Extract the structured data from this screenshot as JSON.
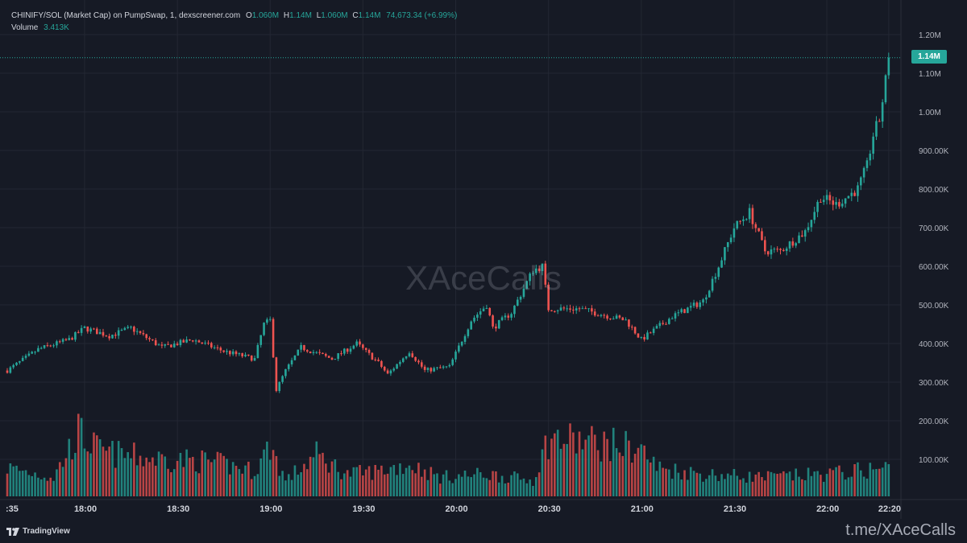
{
  "legend": {
    "symbol": "CHINIFY/SOL (Market Cap) on PumpSwap, 1, dexscreener.com",
    "o_label": "O",
    "o_value": "1.060M",
    "h_label": "H",
    "h_value": "1.14M",
    "l_label": "L",
    "l_value": "1.060M",
    "c_label": "C",
    "c_value": "1.14M",
    "change": "74,673.34 (+6.99%)",
    "volume_label": "Volume",
    "volume_value": "3.413K"
  },
  "price_badge": "1.14M",
  "watermark": "XAceCalls",
  "branding": {
    "tv_label": "TradingView",
    "link": "t.me/XAceCalls"
  },
  "colors": {
    "background": "#161a25",
    "up": "#26a69a",
    "down": "#ef5350",
    "grid": "#232733",
    "text": "#b2b5be"
  },
  "chart_data": {
    "type": "candlestick",
    "y_axis_ticks": [
      {
        "value": 1200000,
        "label": "1.20M"
      },
      {
        "value": 1100000,
        "label": "1.10M"
      },
      {
        "value": 1000000,
        "label": "1.00M"
      },
      {
        "value": 900000,
        "label": "900.00K"
      },
      {
        "value": 800000,
        "label": "800.00K"
      },
      {
        "value": 700000,
        "label": "700.00K"
      },
      {
        "value": 600000,
        "label": "600.00K"
      },
      {
        "value": 500000,
        "label": "500.00K"
      },
      {
        "value": 400000,
        "label": "400.00K"
      },
      {
        "value": 300000,
        "label": "300.00K"
      },
      {
        "value": 200000,
        "label": "200.00K"
      },
      {
        "value": 100000,
        "label": "100.00K"
      }
    ],
    "x_axis_ticks": [
      {
        "time": "17:35",
        "label": ":35"
      },
      {
        "time": "18:00",
        "label": "18:00"
      },
      {
        "time": "18:30",
        "label": "18:30"
      },
      {
        "time": "19:00",
        "label": "19:00"
      },
      {
        "time": "19:30",
        "label": "19:30"
      },
      {
        "time": "20:00",
        "label": "20:00"
      },
      {
        "time": "20:30",
        "label": "20:30"
      },
      {
        "time": "21:00",
        "label": "21:00"
      },
      {
        "time": "21:30",
        "label": "21:30"
      },
      {
        "time": "22:00",
        "label": "22:00"
      },
      {
        "time": "22:20",
        "label": "22:20"
      }
    ],
    "last_price": 1140000,
    "close_path": [
      [
        "17:35",
        330000
      ],
      [
        "17:45",
        385000
      ],
      [
        "17:55",
        410000
      ],
      [
        "18:00",
        440000
      ],
      [
        "18:08",
        420000
      ],
      [
        "18:15",
        440000
      ],
      [
        "18:25",
        390000
      ],
      [
        "18:35",
        410000
      ],
      [
        "18:45",
        380000
      ],
      [
        "18:55",
        360000
      ],
      [
        "18:58",
        450000
      ],
      [
        "19:00",
        460000
      ],
      [
        "19:02",
        280000
      ],
      [
        "19:05",
        330000
      ],
      [
        "19:10",
        390000
      ],
      [
        "19:20",
        360000
      ],
      [
        "19:28",
        400000
      ],
      [
        "19:35",
        350000
      ],
      [
        "19:38",
        320000
      ],
      [
        "19:45",
        380000
      ],
      [
        "19:50",
        330000
      ],
      [
        "19:58",
        340000
      ],
      [
        "20:05",
        460000
      ],
      [
        "20:10",
        500000
      ],
      [
        "20:12",
        440000
      ],
      [
        "20:18",
        480000
      ],
      [
        "20:25",
        590000
      ],
      [
        "20:28",
        600000
      ],
      [
        "20:30",
        490000
      ],
      [
        "20:40",
        490000
      ],
      [
        "20:55",
        460000
      ],
      [
        "21:00",
        410000
      ],
      [
        "21:10",
        470000
      ],
      [
        "21:20",
        510000
      ],
      [
        "21:25",
        600000
      ],
      [
        "21:30",
        700000
      ],
      [
        "21:35",
        740000
      ],
      [
        "21:40",
        640000
      ],
      [
        "21:45",
        640000
      ],
      [
        "21:53",
        690000
      ],
      [
        "21:58",
        780000
      ],
      [
        "22:03",
        760000
      ],
      [
        "22:10",
        800000
      ],
      [
        "22:13",
        860000
      ],
      [
        "22:15",
        940000
      ],
      [
        "22:17",
        980000
      ],
      [
        "22:19",
        1080000
      ],
      [
        "22:20",
        1140000
      ]
    ],
    "volume_path": [
      [
        "17:35",
        90000
      ],
      [
        "17:50",
        60000
      ],
      [
        "17:58",
        200000
      ],
      [
        "18:05",
        140000
      ],
      [
        "18:20",
        120000
      ],
      [
        "18:40",
        110000
      ],
      [
        "18:55",
        80000
      ],
      [
        "19:00",
        160000
      ],
      [
        "19:05",
        50000
      ],
      [
        "19:15",
        130000
      ],
      [
        "19:25",
        70000
      ],
      [
        "19:35",
        80000
      ],
      [
        "19:45",
        100000
      ],
      [
        "19:55",
        60000
      ],
      [
        "20:10",
        70000
      ],
      [
        "20:25",
        50000
      ],
      [
        "20:30",
        180000
      ],
      [
        "20:45",
        170000
      ],
      [
        "21:00",
        150000
      ],
      [
        "21:05",
        90000
      ],
      [
        "21:20",
        70000
      ],
      [
        "21:40",
        60000
      ],
      [
        "22:00",
        70000
      ],
      [
        "22:20",
        90000
      ]
    ]
  }
}
